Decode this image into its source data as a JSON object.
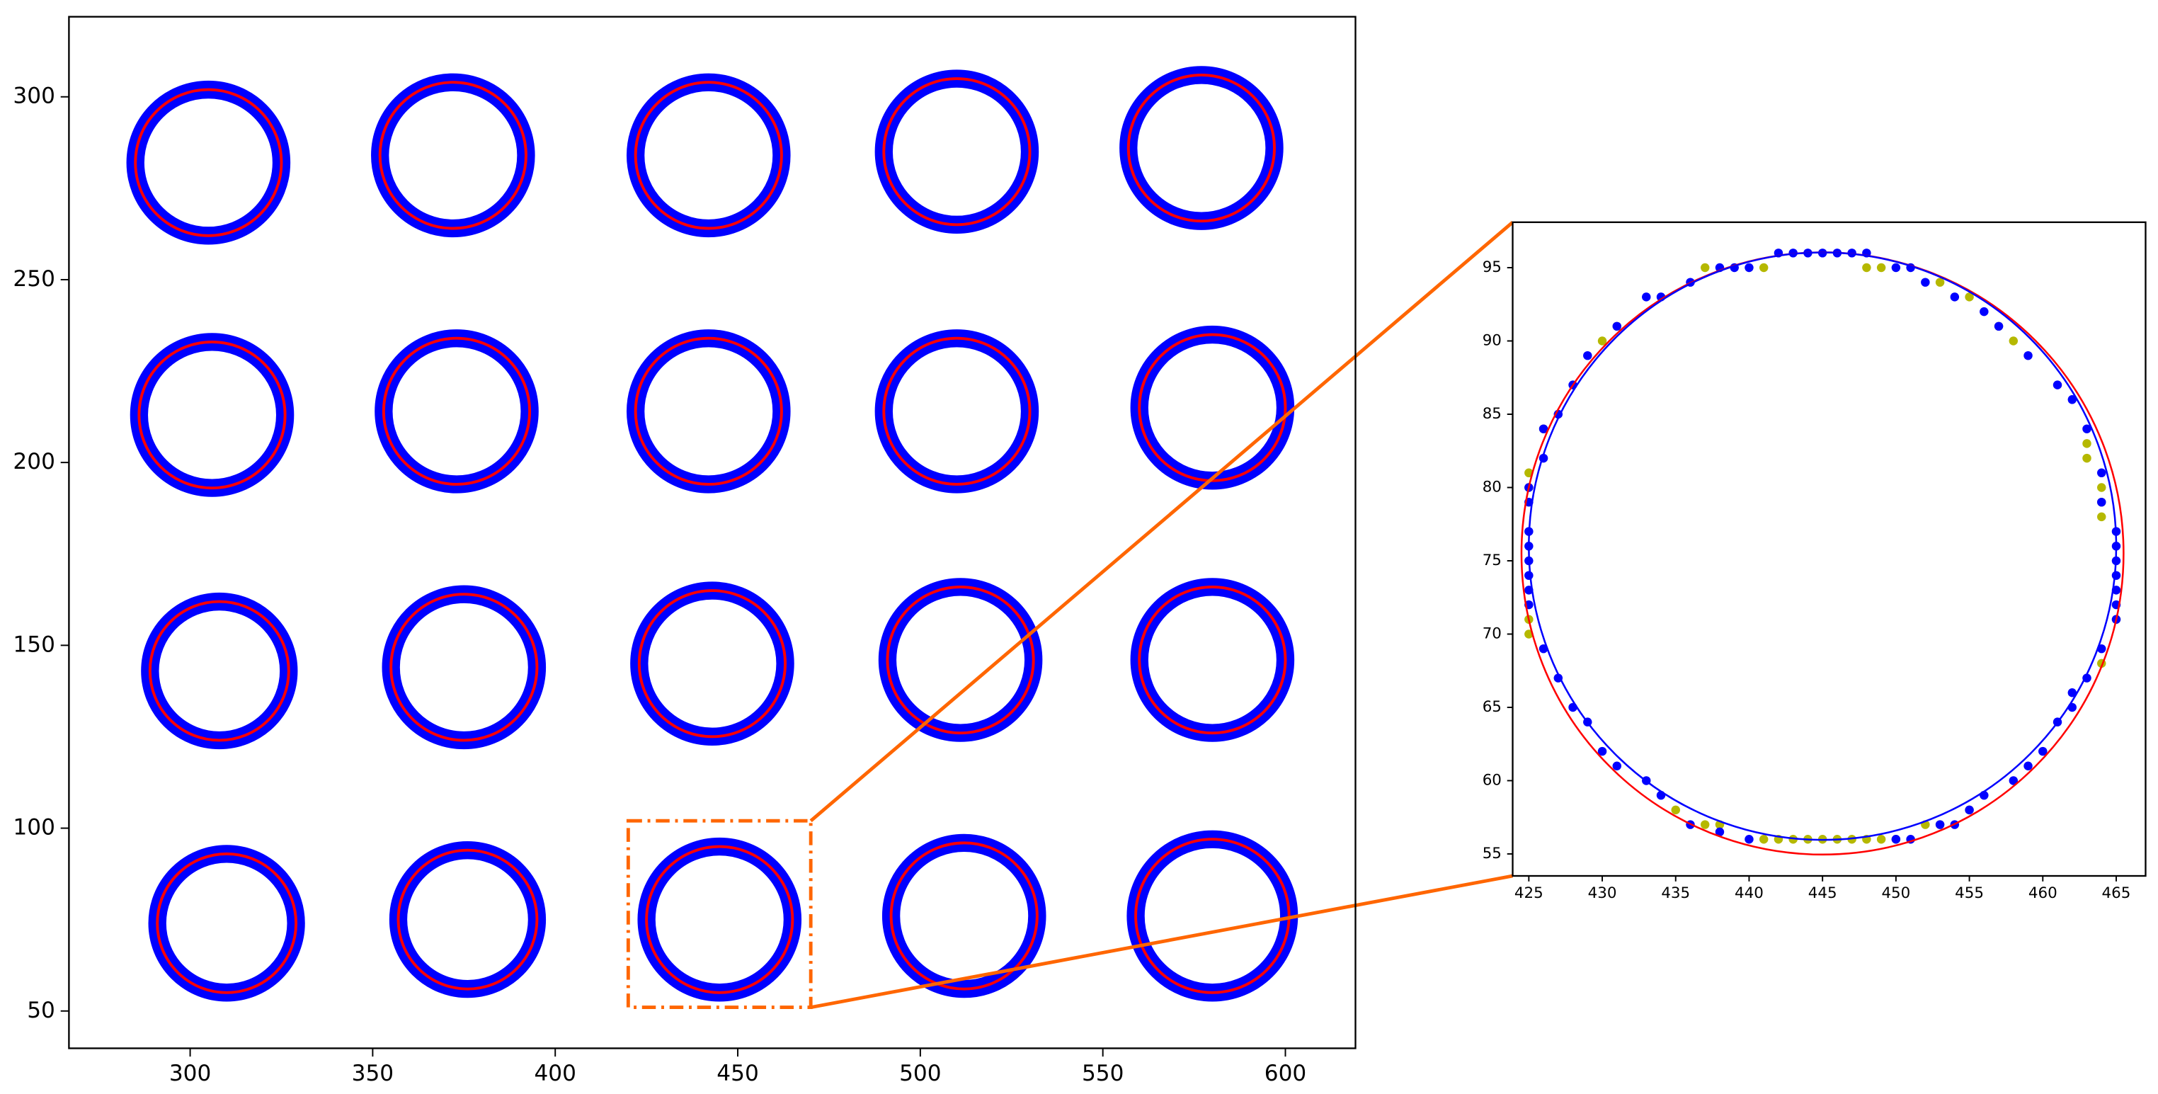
{
  "chart_data": [
    {
      "type": "rings",
      "xlim": [
        266.8,
        619.2
      ],
      "ylim": [
        39.8,
        321.9
      ],
      "xticks": [
        300,
        350,
        400,
        450,
        500,
        550,
        600
      ],
      "yticks": [
        50,
        100,
        150,
        200,
        250,
        300
      ],
      "ring_color": "#0000ff",
      "fit_color": "#ff0000",
      "rings": [
        {
          "cx": 305,
          "cy": 282,
          "r": 20
        },
        {
          "cx": 372,
          "cy": 284,
          "r": 20
        },
        {
          "cx": 442,
          "cy": 284,
          "r": 20
        },
        {
          "cx": 510,
          "cy": 285,
          "r": 20
        },
        {
          "cx": 577,
          "cy": 286,
          "r": 20
        },
        {
          "cx": 306,
          "cy": 213,
          "r": 20
        },
        {
          "cx": 373,
          "cy": 214,
          "r": 20
        },
        {
          "cx": 442,
          "cy": 214,
          "r": 20
        },
        {
          "cx": 510,
          "cy": 214,
          "r": 20
        },
        {
          "cx": 580,
          "cy": 215,
          "r": 20
        },
        {
          "cx": 308,
          "cy": 143,
          "r": 19
        },
        {
          "cx": 375,
          "cy": 144,
          "r": 20
        },
        {
          "cx": 443,
          "cy": 145,
          "r": 20
        },
        {
          "cx": 511,
          "cy": 146,
          "r": 20
        },
        {
          "cx": 580,
          "cy": 146,
          "r": 20
        },
        {
          "cx": 310,
          "cy": 74,
          "r": 19
        },
        {
          "cx": 376,
          "cy": 75,
          "r": 19
        },
        {
          "cx": 445,
          "cy": 75,
          "r": 20
        },
        {
          "cx": 512,
          "cy": 76,
          "r": 20
        },
        {
          "cx": 580,
          "cy": 76,
          "r": 21
        }
      ],
      "zoom_box": {
        "xlim": [
          420,
          470
        ],
        "ylim": [
          51,
          102
        ],
        "color": "#ff6600"
      }
    },
    {
      "type": "scatter",
      "xlim": [
        423.9,
        467.0
      ],
      "ylim": [
        53.5,
        98.1
      ],
      "xticks": [
        425,
        430,
        435,
        440,
        445,
        450,
        455,
        460,
        465
      ],
      "yticks": [
        55,
        60,
        65,
        70,
        75,
        80,
        85,
        90,
        95
      ],
      "fits": [
        {
          "color": "#ff0000",
          "cx": 445,
          "cy": 75.5,
          "r": 20.5
        },
        {
          "color": "#0000ff",
          "cx": 445,
          "cy": 76,
          "r": 20
        }
      ],
      "series": [
        {
          "color": "#b5b800",
          "x": [
            437,
            441,
            448,
            449,
            453,
            455,
            457,
            458,
            430,
            431,
            426,
            425,
            425,
            425,
            425,
            464,
            464,
            464,
            463,
            463,
            464,
            465,
            435,
            437,
            438,
            441,
            442,
            443,
            444,
            445,
            446,
            447,
            448,
            449,
            450,
            452,
            453,
            455
          ],
          "values": [
            95,
            95,
            95,
            95,
            94,
            93,
            91,
            90,
            90,
            91,
            84,
            81,
            80,
            70,
            71,
            80,
            79,
            78,
            83,
            82,
            68,
            71,
            58,
            57,
            57,
            56,
            56,
            56,
            56,
            56,
            56,
            56,
            56,
            56,
            56,
            57,
            57,
            58
          ]
        },
        {
          "color": "#0000ff",
          "x": [
            442,
            443,
            444,
            445,
            446,
            447,
            440,
            438,
            439,
            436,
            434,
            433,
            431,
            429,
            428,
            427,
            426,
            426,
            425,
            425,
            425,
            425,
            425,
            425,
            425,
            425,
            426,
            427,
            428,
            429,
            430,
            431,
            433,
            434,
            436,
            438,
            440,
            450,
            451,
            453,
            454,
            455,
            456,
            458,
            459,
            460,
            461,
            462,
            462,
            463,
            464,
            465,
            465,
            465,
            465,
            465,
            465,
            465,
            464,
            464,
            463,
            462,
            461,
            459,
            457,
            456,
            454,
            452,
            451,
            450,
            448
          ],
          "values": [
            96,
            96,
            96,
            96,
            96,
            96,
            95,
            95,
            95,
            94,
            93,
            93,
            91,
            89,
            87,
            85,
            84,
            82,
            80,
            79,
            77,
            76,
            75,
            74,
            73,
            72,
            69,
            67,
            65,
            64,
            62,
            61,
            60,
            59,
            57,
            56.5,
            56,
            56,
            56,
            57,
            57,
            58,
            59,
            60,
            61,
            62,
            64,
            65,
            66,
            67,
            69,
            71,
            72,
            73,
            74,
            75,
            76,
            77,
            79,
            81,
            84,
            86,
            87,
            89,
            91,
            92,
            93,
            94,
            95,
            95,
            96
          ]
        }
      ]
    }
  ]
}
